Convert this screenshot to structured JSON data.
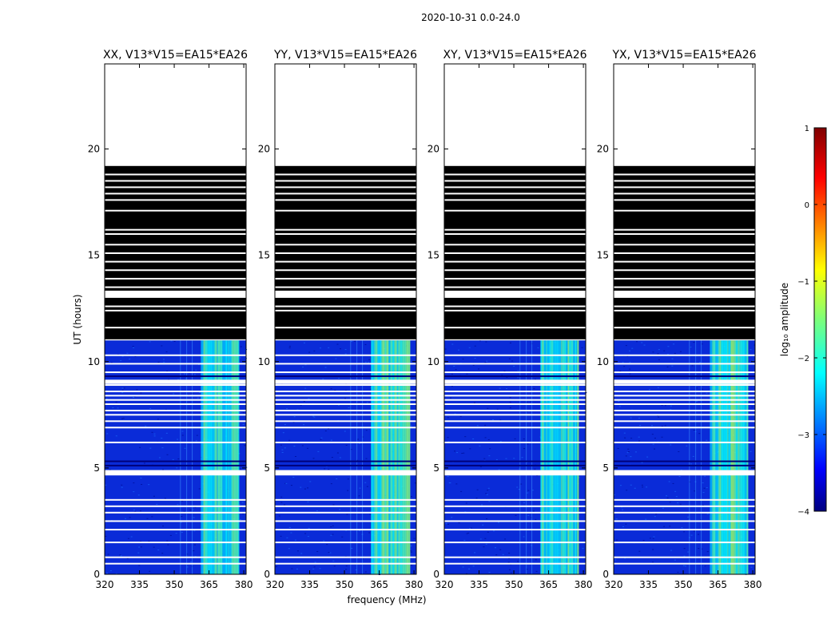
{
  "figure": {
    "suptitle": "2020-10-31 0.0-24.0",
    "xlabel": "frequency (MHz)",
    "ylabel": "UT (hours)"
  },
  "chart_data": {
    "type": "heatmap",
    "title": "2020-10-31 0.0-24.0",
    "xlabel": "frequency (MHz)",
    "ylabel": "UT (hours)",
    "xlim": [
      320,
      381
    ],
    "ylim": [
      0,
      24
    ],
    "xticks": [
      "320",
      "335",
      "350",
      "365",
      "380"
    ],
    "yticks": [
      "0",
      "5",
      "10",
      "15",
      "20"
    ],
    "panels": [
      {
        "title": "XX, V13*V15=EA15*EA26",
        "show_yaxis_title": true
      },
      {
        "title": "YY, V13*V15=EA15*EA26",
        "show_yaxis_title": false
      },
      {
        "title": "XY, V13*V15=EA15*EA26",
        "show_yaxis_title": false
      },
      {
        "title": "YX, V13*V15=EA15*EA26",
        "show_yaxis_title": false
      }
    ],
    "valid_data_hours": [
      0,
      11
    ],
    "flagged_black_hours": [
      11,
      19.2
    ],
    "blank_hours": [
      19.2,
      24
    ],
    "bright_band_mhz": [
      361.5,
      378
    ],
    "white_gap_hours": [
      0.5,
      0.8,
      1.5,
      2.1,
      2.5,
      2.9,
      3.2,
      3.5,
      4.7,
      4.8,
      6.2,
      6.9,
      7.2,
      7.5,
      7.7,
      8.0,
      8.2,
      8.4,
      8.6,
      8.9,
      9.1,
      9.5,
      9.9,
      10.3,
      11.6,
      12.4,
      12.6,
      13.3,
      13.5,
      13.9,
      14.3,
      14.7,
      15.1,
      15.5,
      16.0,
      16.2,
      17.1,
      17.6,
      17.9,
      18.2,
      18.5,
      18.8
    ],
    "colorbar": {
      "label": "log₁₀ amplitude",
      "range": [
        -4,
        1
      ],
      "ticks": [
        "1",
        "0",
        "−1",
        "−2",
        "−3",
        "−4"
      ],
      "colormap": "jet"
    }
  }
}
